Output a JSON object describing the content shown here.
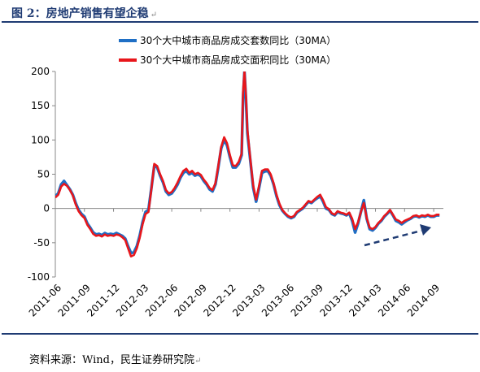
{
  "title": "图 2：房地产销售有望企稳",
  "source": "资料来源：Wind，民生证券研究院",
  "colors": {
    "accent": "#1f3b73",
    "series_blue": "#1f6fc5",
    "series_red": "#e8161b",
    "arrow": "#1f3b73"
  },
  "chart_data": {
    "type": "line",
    "title": "",
    "xlabel": "",
    "ylabel": "",
    "ylim": [
      -100,
      200
    ],
    "yticks": [
      -100,
      -50,
      0,
      50,
      100,
      150,
      200
    ],
    "xlim": [
      0,
      40
    ],
    "x_tick_labels": [
      "2011-06",
      "2011-09",
      "2011-12",
      "2012-03",
      "2012-06",
      "2012-09",
      "2012-12",
      "2013-03",
      "2013-06",
      "2013-09",
      "2013-12",
      "2014-03",
      "2014-06",
      "2014-09"
    ],
    "x_tick_positions": [
      0,
      3,
      6,
      9,
      12,
      15,
      18,
      21,
      24,
      27,
      30,
      33,
      36,
      39
    ],
    "x_unit": "months since 2011-06",
    "grid": false,
    "legend_position": "top-right",
    "annotation": "dashed arrow indicating upward trend (2014-03 to 2014-09)",
    "series": [
      {
        "name": "30个大中城市商品房成交套数同比（30MA）",
        "color": "#1f6fc5",
        "points": [
          [
            0,
            18
          ],
          [
            0.3,
            22
          ],
          [
            0.6,
            35
          ],
          [
            0.9,
            40
          ],
          [
            1.2,
            34
          ],
          [
            1.5,
            28
          ],
          [
            1.8,
            20
          ],
          [
            2.1,
            8
          ],
          [
            2.4,
            -2
          ],
          [
            2.7,
            -8
          ],
          [
            3.0,
            -12
          ],
          [
            3.3,
            -22
          ],
          [
            3.6,
            -28
          ],
          [
            3.9,
            -35
          ],
          [
            4.2,
            -38
          ],
          [
            4.5,
            -37
          ],
          [
            4.8,
            -39
          ],
          [
            5.1,
            -36
          ],
          [
            5.4,
            -38
          ],
          [
            5.7,
            -37
          ],
          [
            6.0,
            -38
          ],
          [
            6.3,
            -36
          ],
          [
            6.6,
            -38
          ],
          [
            6.9,
            -40
          ],
          [
            7.2,
            -44
          ],
          [
            7.5,
            -55
          ],
          [
            7.8,
            -65
          ],
          [
            8.1,
            -64
          ],
          [
            8.4,
            -55
          ],
          [
            8.7,
            -40
          ],
          [
            9.0,
            -20
          ],
          [
            9.3,
            -5
          ],
          [
            9.6,
            -2
          ],
          [
            9.9,
            30
          ],
          [
            10.2,
            62
          ],
          [
            10.5,
            60
          ],
          [
            10.8,
            48
          ],
          [
            11.1,
            38
          ],
          [
            11.4,
            25
          ],
          [
            11.7,
            20
          ],
          [
            12.0,
            22
          ],
          [
            12.3,
            28
          ],
          [
            12.6,
            35
          ],
          [
            12.9,
            45
          ],
          [
            13.2,
            52
          ],
          [
            13.5,
            55
          ],
          [
            13.8,
            50
          ],
          [
            14.1,
            52
          ],
          [
            14.4,
            48
          ],
          [
            14.7,
            50
          ],
          [
            15.0,
            47
          ],
          [
            15.3,
            40
          ],
          [
            15.6,
            35
          ],
          [
            15.9,
            28
          ],
          [
            16.2,
            25
          ],
          [
            16.5,
            35
          ],
          [
            16.8,
            60
          ],
          [
            17.1,
            88
          ],
          [
            17.4,
            100
          ],
          [
            17.7,
            92
          ],
          [
            18.0,
            75
          ],
          [
            18.3,
            60
          ],
          [
            18.6,
            60
          ],
          [
            18.9,
            65
          ],
          [
            19.2,
            78
          ],
          [
            19.35,
            160
          ],
          [
            19.5,
            200
          ],
          [
            19.65,
            160
          ],
          [
            19.8,
            110
          ],
          [
            20.1,
            70
          ],
          [
            20.4,
            30
          ],
          [
            20.7,
            10
          ],
          [
            21.0,
            30
          ],
          [
            21.3,
            52
          ],
          [
            21.6,
            54
          ],
          [
            21.9,
            55
          ],
          [
            22.2,
            48
          ],
          [
            22.5,
            35
          ],
          [
            22.8,
            18
          ],
          [
            23.1,
            5
          ],
          [
            23.4,
            -3
          ],
          [
            23.7,
            -8
          ],
          [
            24.0,
            -12
          ],
          [
            24.3,
            -14
          ],
          [
            24.6,
            -12
          ],
          [
            24.9,
            -6
          ],
          [
            25.2,
            -3
          ],
          [
            25.5,
            0
          ],
          [
            25.8,
            5
          ],
          [
            26.1,
            10
          ],
          [
            26.4,
            8
          ],
          [
            26.7,
            12
          ],
          [
            27.0,
            15
          ],
          [
            27.3,
            18
          ],
          [
            27.6,
            10
          ],
          [
            27.9,
            0
          ],
          [
            28.2,
            -2
          ],
          [
            28.5,
            -8
          ],
          [
            28.8,
            -10
          ],
          [
            29.1,
            -5
          ],
          [
            29.4,
            -7
          ],
          [
            29.7,
            -8
          ],
          [
            30.0,
            -10
          ],
          [
            30.3,
            -7
          ],
          [
            30.6,
            -18
          ],
          [
            30.9,
            -35
          ],
          [
            31.2,
            -22
          ],
          [
            31.5,
            -5
          ],
          [
            31.8,
            12
          ],
          [
            32.1,
            -15
          ],
          [
            32.4,
            -30
          ],
          [
            32.7,
            -32
          ],
          [
            33.0,
            -28
          ],
          [
            33.3,
            -22
          ],
          [
            33.6,
            -18
          ],
          [
            33.9,
            -12
          ],
          [
            34.2,
            -8
          ],
          [
            34.5,
            -3
          ],
          [
            34.8,
            -10
          ],
          [
            35.1,
            -18
          ],
          [
            35.4,
            -20
          ],
          [
            35.7,
            -23
          ],
          [
            36.0,
            -20
          ],
          [
            36.3,
            -17
          ],
          [
            36.6,
            -15
          ],
          [
            36.9,
            -12
          ],
          [
            37.2,
            -11
          ],
          [
            37.5,
            -13
          ],
          [
            37.8,
            -11
          ],
          [
            38.1,
            -12
          ],
          [
            38.4,
            -10
          ],
          [
            38.7,
            -12
          ],
          [
            39.0,
            -12
          ],
          [
            39.3,
            -10
          ],
          [
            39.6,
            -10
          ]
        ]
      },
      {
        "name": "30个大中城市商品房成交面积同比（30MA）",
        "color": "#e8161b",
        "points": [
          [
            0,
            16
          ],
          [
            0.3,
            20
          ],
          [
            0.6,
            32
          ],
          [
            0.9,
            36
          ],
          [
            1.2,
            33
          ],
          [
            1.5,
            27
          ],
          [
            1.8,
            19
          ],
          [
            2.1,
            6
          ],
          [
            2.4,
            -4
          ],
          [
            2.7,
            -10
          ],
          [
            3.0,
            -14
          ],
          [
            3.3,
            -24
          ],
          [
            3.6,
            -30
          ],
          [
            3.9,
            -37
          ],
          [
            4.2,
            -40
          ],
          [
            4.5,
            -39
          ],
          [
            4.8,
            -41
          ],
          [
            5.1,
            -38
          ],
          [
            5.4,
            -40
          ],
          [
            5.7,
            -39
          ],
          [
            6.0,
            -40
          ],
          [
            6.3,
            -38
          ],
          [
            6.6,
            -39
          ],
          [
            6.9,
            -42
          ],
          [
            7.2,
            -46
          ],
          [
            7.5,
            -58
          ],
          [
            7.8,
            -70
          ],
          [
            8.1,
            -68
          ],
          [
            8.4,
            -58
          ],
          [
            8.7,
            -43
          ],
          [
            9.0,
            -23
          ],
          [
            9.3,
            -8
          ],
          [
            9.6,
            -5
          ],
          [
            9.9,
            28
          ],
          [
            10.2,
            65
          ],
          [
            10.5,
            62
          ],
          [
            10.8,
            50
          ],
          [
            11.1,
            40
          ],
          [
            11.4,
            27
          ],
          [
            11.7,
            22
          ],
          [
            12.0,
            24
          ],
          [
            12.3,
            30
          ],
          [
            12.6,
            38
          ],
          [
            12.9,
            47
          ],
          [
            13.2,
            55
          ],
          [
            13.5,
            58
          ],
          [
            13.8,
            52
          ],
          [
            14.1,
            55
          ],
          [
            14.4,
            50
          ],
          [
            14.7,
            52
          ],
          [
            15.0,
            49
          ],
          [
            15.3,
            42
          ],
          [
            15.6,
            37
          ],
          [
            15.9,
            30
          ],
          [
            16.2,
            27
          ],
          [
            16.5,
            37
          ],
          [
            16.8,
            62
          ],
          [
            17.1,
            90
          ],
          [
            17.4,
            104
          ],
          [
            17.7,
            95
          ],
          [
            18.0,
            78
          ],
          [
            18.3,
            63
          ],
          [
            18.6,
            62
          ],
          [
            18.9,
            68
          ],
          [
            19.2,
            80
          ],
          [
            19.35,
            170
          ],
          [
            19.5,
            200
          ],
          [
            19.65,
            165
          ],
          [
            19.8,
            115
          ],
          [
            20.1,
            72
          ],
          [
            20.4,
            33
          ],
          [
            20.7,
            13
          ],
          [
            21.0,
            33
          ],
          [
            21.3,
            55
          ],
          [
            21.6,
            57
          ],
          [
            21.9,
            57
          ],
          [
            22.2,
            50
          ],
          [
            22.5,
            37
          ],
          [
            22.8,
            20
          ],
          [
            23.1,
            7
          ],
          [
            23.4,
            -2
          ],
          [
            23.7,
            -7
          ],
          [
            24.0,
            -11
          ],
          [
            24.3,
            -13
          ],
          [
            24.6,
            -11
          ],
          [
            24.9,
            -5
          ],
          [
            25.2,
            -2
          ],
          [
            25.5,
            1
          ],
          [
            25.8,
            6
          ],
          [
            26.1,
            11
          ],
          [
            26.4,
            9
          ],
          [
            26.7,
            13
          ],
          [
            27.0,
            17
          ],
          [
            27.3,
            20
          ],
          [
            27.6,
            12
          ],
          [
            27.9,
            2
          ],
          [
            28.2,
            -1
          ],
          [
            28.5,
            -7
          ],
          [
            28.8,
            -9
          ],
          [
            29.1,
            -4
          ],
          [
            29.4,
            -6
          ],
          [
            29.7,
            -7
          ],
          [
            30.0,
            -9
          ],
          [
            30.3,
            -6
          ],
          [
            30.6,
            -15
          ],
          [
            30.9,
            -30
          ],
          [
            31.2,
            -20
          ],
          [
            31.5,
            -5
          ],
          [
            31.8,
            8
          ],
          [
            32.1,
            -14
          ],
          [
            32.4,
            -28
          ],
          [
            32.7,
            -30
          ],
          [
            33.0,
            -27
          ],
          [
            33.3,
            -21
          ],
          [
            33.6,
            -17
          ],
          [
            33.9,
            -11
          ],
          [
            34.2,
            -7
          ],
          [
            34.5,
            -2
          ],
          [
            34.8,
            -9
          ],
          [
            35.1,
            -16
          ],
          [
            35.4,
            -18
          ],
          [
            35.7,
            -21
          ],
          [
            36.0,
            -18
          ],
          [
            36.3,
            -16
          ],
          [
            36.6,
            -14
          ],
          [
            36.9,
            -11
          ],
          [
            37.2,
            -10
          ],
          [
            37.5,
            -12
          ],
          [
            37.8,
            -10
          ],
          [
            38.1,
            -11
          ],
          [
            38.4,
            -9
          ],
          [
            38.7,
            -11
          ],
          [
            39.0,
            -11
          ],
          [
            39.3,
            -9
          ],
          [
            39.6,
            -9
          ]
        ]
      }
    ]
  }
}
